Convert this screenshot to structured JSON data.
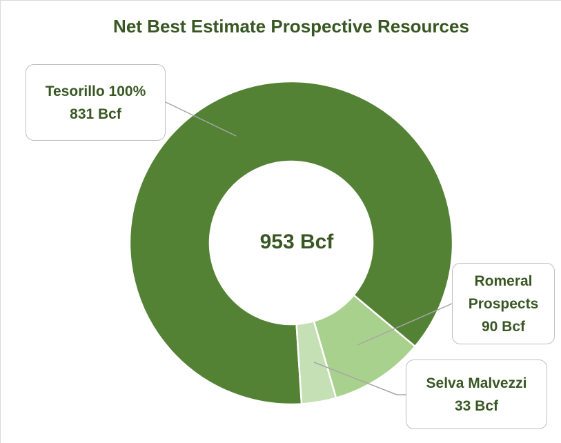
{
  "chart_data": {
    "type": "doughnut",
    "title": "Net Best Estimate Prospective Resources",
    "categories": [
      "Tesorillo 100%",
      "Romeral Prospects",
      "Selva Malvezzi"
    ],
    "values": [
      831,
      90,
      33
    ],
    "value_labels": [
      "831 Bcf",
      "90 Bcf",
      "33 Bcf"
    ],
    "colors": [
      "#548235",
      "#a9d18e",
      "#c5e0b4"
    ],
    "center_label": "953 Bcf"
  }
}
